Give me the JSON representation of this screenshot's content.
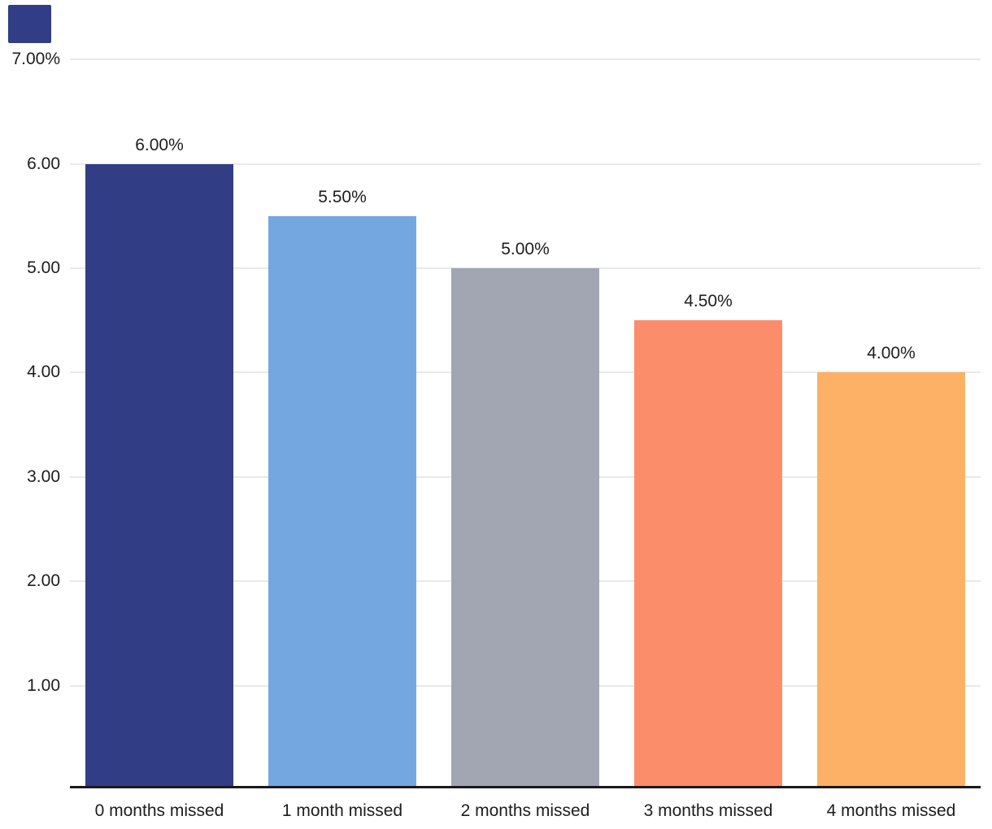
{
  "chart_data": {
    "type": "bar",
    "categories": [
      "0 months missed",
      "1 month missed",
      "2 months missed",
      "3 months missed",
      "4 months missed"
    ],
    "values": [
      6.0,
      5.5,
      5.0,
      4.5,
      4.0
    ],
    "value_labels": [
      "6.00%",
      "5.50%",
      "5.00%",
      "4.50%",
      "4.00%"
    ],
    "bar_colors": [
      "#313d84",
      "#74a7e0",
      "#a2a6b3",
      "#fc8d6b",
      "#fdb167"
    ],
    "y_ticks": [
      {
        "value": 7,
        "label": "7.00%"
      },
      {
        "value": 6,
        "label": "6.00"
      },
      {
        "value": 5,
        "label": "5.00"
      },
      {
        "value": 4,
        "label": "4.00"
      },
      {
        "value": 3,
        "label": "3.00"
      },
      {
        "value": 2,
        "label": "2.00"
      },
      {
        "value": 1,
        "label": "1.00"
      }
    ],
    "ylim": [
      0,
      7.05
    ],
    "grid": "horizontal",
    "legend_position": "top-left",
    "title": "",
    "xlabel": "",
    "ylabel": ""
  },
  "legend": {
    "swatch_color": "#313d84"
  },
  "style_colors": {
    "grid_color": "#e9e9e9",
    "axis_line_color": "#1a1a1c",
    "text_color": "#1d1d1d"
  }
}
